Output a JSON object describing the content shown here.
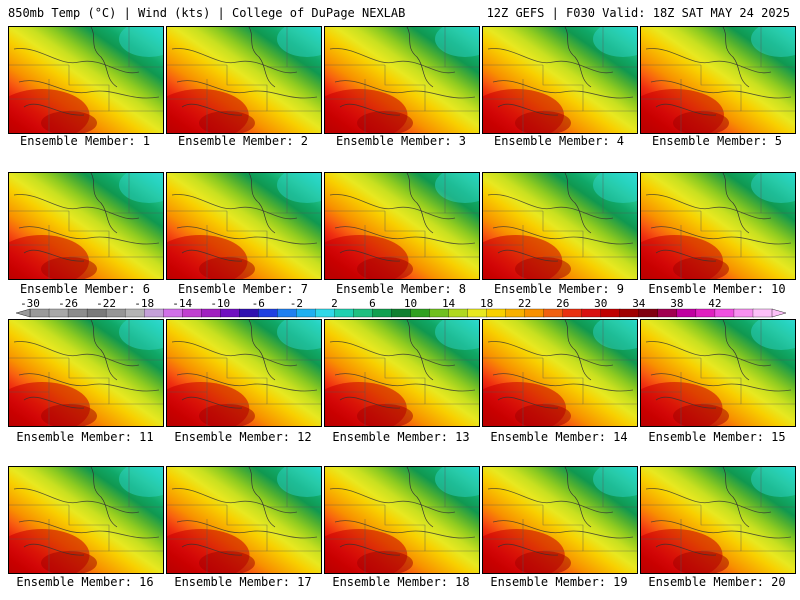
{
  "header": {
    "left": "850mb Temp (°C) | Wind (kts) | College of DuPage NEXLAB",
    "right": "12Z GEFS | F030 Valid: 18Z SAT MAY 24 2025"
  },
  "panels": [
    {
      "caption": "Ensemble Member: 1",
      "warm": 0.5
    },
    {
      "caption": "Ensemble Member: 2",
      "warm": 0.55
    },
    {
      "caption": "Ensemble Member: 3",
      "warm": 0.58
    },
    {
      "caption": "Ensemble Member: 4",
      "warm": 0.52
    },
    {
      "caption": "Ensemble Member: 5",
      "warm": 0.6
    },
    {
      "caption": "Ensemble Member: 6",
      "warm": 0.48
    },
    {
      "caption": "Ensemble Member: 7",
      "warm": 0.5
    },
    {
      "caption": "Ensemble Member: 8",
      "warm": 0.62
    },
    {
      "caption": "Ensemble Member: 9",
      "warm": 0.45
    },
    {
      "caption": "Ensemble Member: 10",
      "warm": 0.56
    },
    {
      "caption": "Ensemble Member: 11",
      "warm": 0.52
    },
    {
      "caption": "Ensemble Member: 12",
      "warm": 0.57
    },
    {
      "caption": "Ensemble Member: 13",
      "warm": 0.55
    },
    {
      "caption": "Ensemble Member: 14",
      "warm": 0.6
    },
    {
      "caption": "Ensemble Member: 15",
      "warm": 0.54
    },
    {
      "caption": "Ensemble Member: 16",
      "warm": 0.5
    },
    {
      "caption": "Ensemble Member: 17",
      "warm": 0.58
    },
    {
      "caption": "Ensemble Member: 18",
      "warm": 0.57
    },
    {
      "caption": "Ensemble Member: 19",
      "warm": 0.55
    },
    {
      "caption": "Ensemble Member: 20",
      "warm": 0.54
    }
  ],
  "colorbar": {
    "tick_labels": [
      "-30",
      "-26",
      "-22",
      "-18",
      "-14",
      "-10",
      "-6",
      "-2",
      "2",
      "6",
      "10",
      "14",
      "18",
      "22",
      "26",
      "30",
      "34",
      "38",
      "42"
    ],
    "colors": [
      "#9a9a9a",
      "#a8a8a8",
      "#8c8c8c",
      "#7a7a7a",
      "#969696",
      "#b4b4b4",
      "#c4a0d8",
      "#d070e8",
      "#c040d0",
      "#a020c0",
      "#7010c0",
      "#3010b0",
      "#2040e0",
      "#2080f0",
      "#20b0f0",
      "#30d8e8",
      "#20d0b0",
      "#20c080",
      "#10a050",
      "#108030",
      "#30a020",
      "#70c020",
      "#b0d820",
      "#e8e820",
      "#f8d000",
      "#f8b000",
      "#f89000",
      "#f06010",
      "#e83010",
      "#d81010",
      "#c00000",
      "#a00000",
      "#800010",
      "#a00050",
      "#c000a0",
      "#e020c0",
      "#f050e0",
      "#f890f0",
      "#fcc0f8"
    ]
  }
}
